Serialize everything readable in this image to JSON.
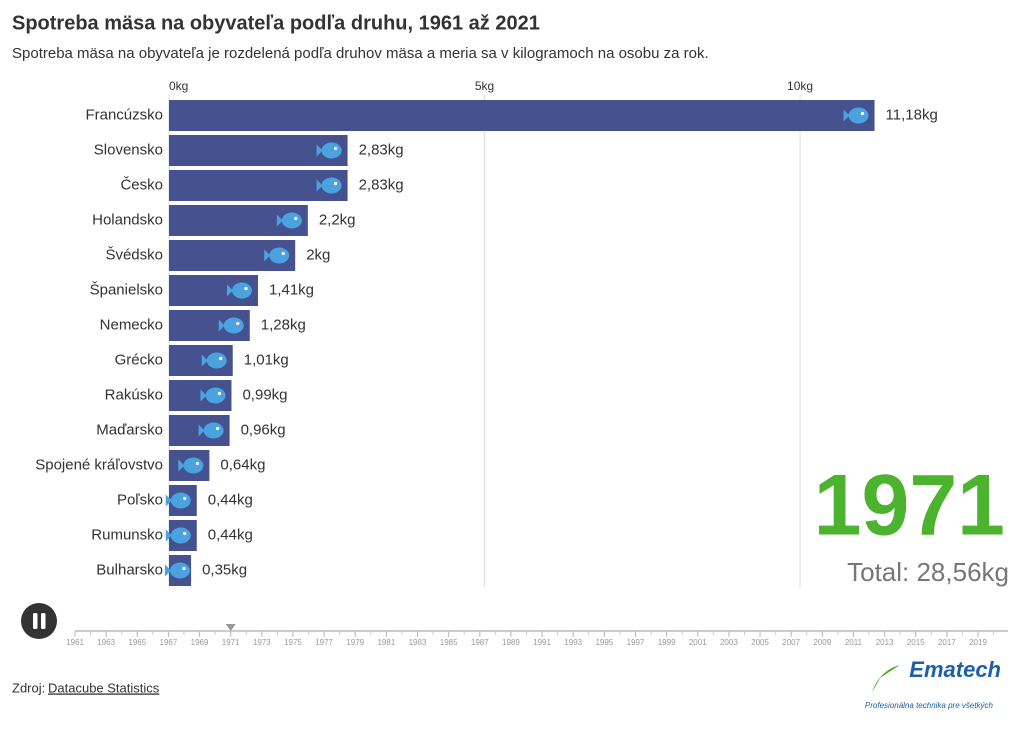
{
  "chart_data": {
    "type": "hbar",
    "title": "Spotreba mäsa na obyvateľa podľa druhu, 1961 až 2021",
    "subtitle": "Spotreba mäsa na obyvateľa je rozdelená podľa druhov mäsa a meria sa v kilogramoch na osobu za rok.",
    "categories": [
      "Francúzsko",
      "Slovensko",
      "Česko",
      "Holandsko",
      "Švédsko",
      "Španielsko",
      "Nemecko",
      "Grécko",
      "Rakúsko",
      "Maďarsko",
      "Spojené kráľovstvo",
      "Poľsko",
      "Rumunsko",
      "Bulharsko"
    ],
    "values": [
      11.18,
      2.83,
      2.83,
      2.2,
      2,
      1.41,
      1.28,
      1.01,
      0.99,
      0.96,
      0.64,
      0.44,
      0.44,
      0.35
    ],
    "value_labels": [
      "11,18kg",
      "2,83kg",
      "2,83kg",
      "2,2kg",
      "2kg",
      "1,41kg",
      "1,28kg",
      "1,01kg",
      "0,99kg",
      "0,96kg",
      "0,64kg",
      "0,44kg",
      "0,44kg",
      "0,35kg"
    ],
    "color": "#46528f",
    "xlim": [
      0,
      13.2
    ],
    "xticks": [
      {
        "value": 0,
        "label": "0kg"
      },
      {
        "value": 5,
        "label": "5kg"
      },
      {
        "value": 10,
        "label": "10kg"
      }
    ],
    "grid": true,
    "total_label": "Total: 28,56kg"
  },
  "timeline": {
    "years": [
      1961,
      1963,
      1965,
      1967,
      1969,
      1971,
      1973,
      1975,
      1977,
      1979,
      1981,
      1983,
      1985,
      1987,
      1989,
      1991,
      1993,
      1995,
      1997,
      1999,
      2001,
      2003,
      2005,
      2007,
      2009,
      2011,
      2013,
      2015,
      2017,
      2019
    ],
    "current": 1971,
    "color": "#4cb32e"
  },
  "footer": {
    "source_prefix": "Zdroj:",
    "source_link": "Datacube Statistics",
    "logo": "Ematech",
    "tagline": "Profesionálna technika pre všetkých"
  }
}
